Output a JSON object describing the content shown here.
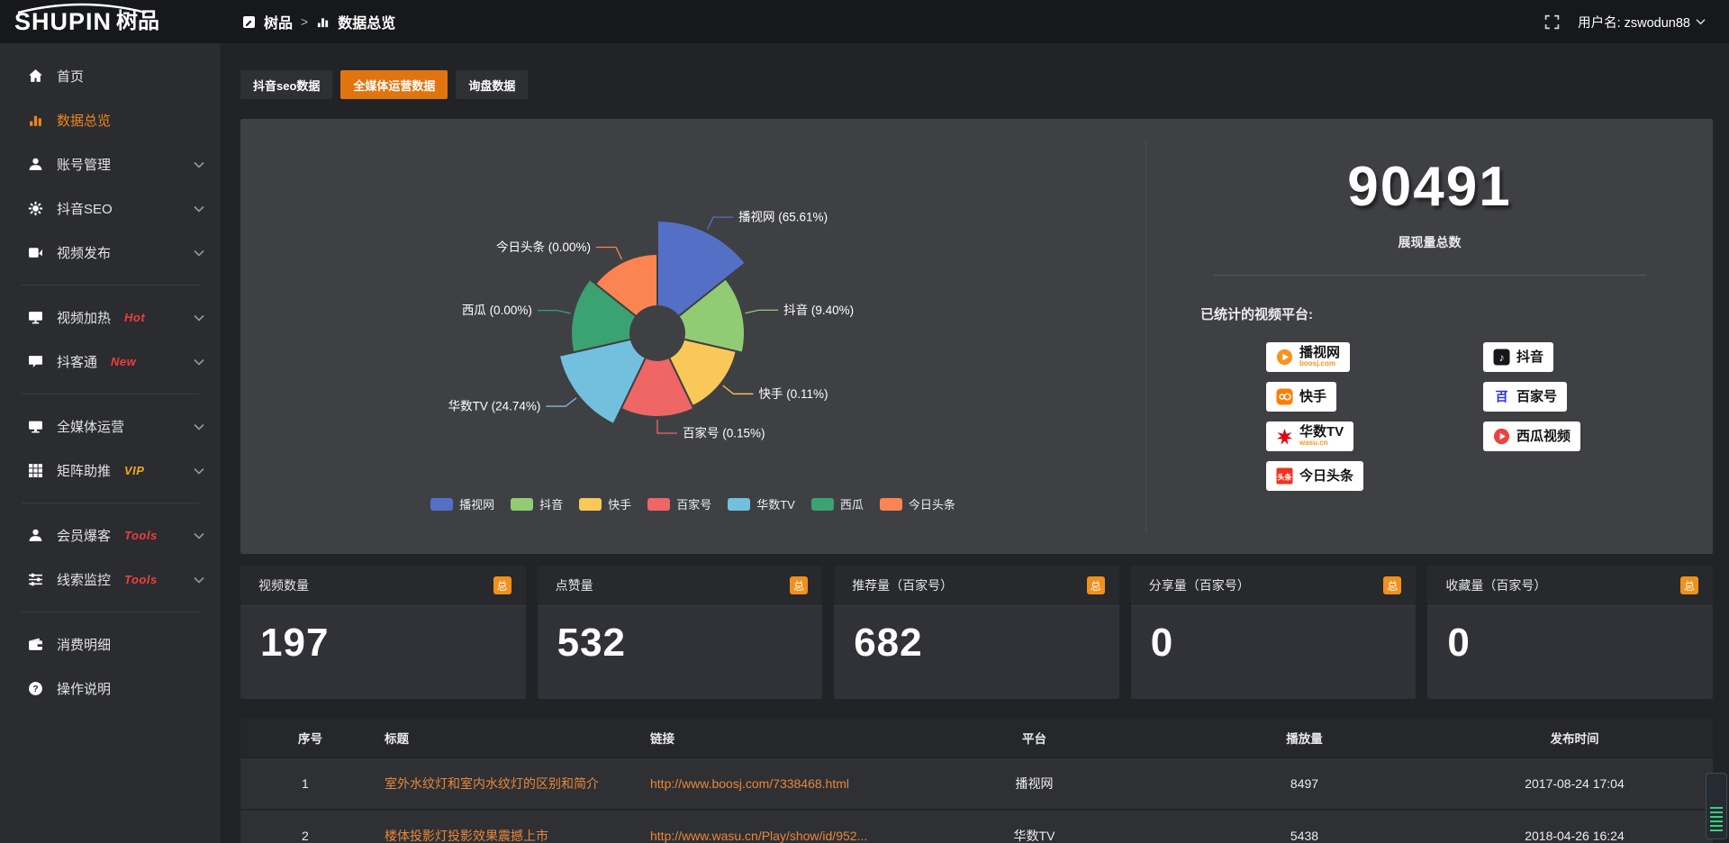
{
  "topbar": {
    "logo_text_en": "SHUPIN",
    "logo_text_cn": "树品",
    "breadcrumb_root": "树品",
    "breadcrumb_sep": ">",
    "breadcrumb_current": "数据总览",
    "username": "用户名: zswodun88"
  },
  "sidebar": {
    "items": [
      {
        "key": "home",
        "label": "首页",
        "icon": "home",
        "active": false
      },
      {
        "key": "data-overview",
        "label": "数据总览",
        "icon": "chart",
        "active": true
      },
      {
        "key": "account-manage",
        "label": "账号管理",
        "icon": "user",
        "chevron": true
      },
      {
        "key": "douyin-seo",
        "label": "抖音SEO",
        "icon": "gear",
        "chevron": true
      },
      {
        "key": "video-publish",
        "label": "视频发布",
        "icon": "publish",
        "chevron": true,
        "divider_after": true
      },
      {
        "key": "video-heat",
        "label": "视频加热",
        "icon": "heat",
        "badge": "Hot",
        "badge_color": "#f03e3e",
        "chevron": true
      },
      {
        "key": "douketong",
        "label": "抖客通",
        "icon": "chat",
        "badge": "New",
        "badge_color": "#f03e3e",
        "chevron": true,
        "divider_after": true
      },
      {
        "key": "media-operation",
        "label": "全媒体运营",
        "icon": "media",
        "chevron": true
      },
      {
        "key": "matrix-boost",
        "label": "矩阵助推",
        "icon": "matrix",
        "badge": "VIP",
        "badge_color": "#f0a818",
        "chevron": true,
        "divider_after": true
      },
      {
        "key": "member-baoke",
        "label": "会员爆客",
        "icon": "member",
        "badge": "Tools",
        "badge_color": "#f03e3e",
        "chevron": true
      },
      {
        "key": "clue-monitor",
        "label": "线索监控",
        "icon": "sliders",
        "badge": "Tools",
        "badge_color": "#f03e3e",
        "chevron": true,
        "divider_after": true
      },
      {
        "key": "expense-detail",
        "label": "消费明细",
        "icon": "wallet"
      },
      {
        "key": "help-guide",
        "label": "操作说明",
        "icon": "help"
      }
    ]
  },
  "tabs": [
    {
      "key": "douyin-seo-data",
      "label": "抖音seo数据",
      "active": false
    },
    {
      "key": "media-operation-data",
      "label": "全媒体运营数据",
      "active": true
    },
    {
      "key": "inquiry-data",
      "label": "询盘数据",
      "active": false
    }
  ],
  "chart_data": {
    "type": "pie",
    "variant": "nightingale-rose",
    "unit": "percent of total impressions",
    "inner_radius": 30,
    "legend_position": "bottom",
    "legend": [
      "播视网",
      "抖音",
      "快手",
      "百家号",
      "华数TV",
      "西瓜",
      "今日头条"
    ],
    "series": [
      {
        "key": "boosj",
        "name": "播视网",
        "value": 65.61,
        "label": "播视网 (65.61%)",
        "color": "#5470c6",
        "radius": 125
      },
      {
        "key": "douyin",
        "name": "抖音",
        "value": 9.4,
        "label": "抖音 (9.40%)",
        "color": "#91cc75",
        "radius": 97
      },
      {
        "key": "kuaishou",
        "name": "快手",
        "value": 0.11,
        "label": "快手 (0.11%)",
        "color": "#fac858",
        "radius": 90
      },
      {
        "key": "baijiahao",
        "name": "百家号",
        "value": 0.15,
        "label": "百家号 (0.15%)",
        "color": "#ee6666",
        "radius": 93
      },
      {
        "key": "wasu",
        "name": "华数TV",
        "value": 24.74,
        "label": "华数TV (24.74%)",
        "color": "#73c0de",
        "radius": 112
      },
      {
        "key": "xigua",
        "name": "西瓜",
        "value": 0.0,
        "label": "西瓜 (0.00%)",
        "color": "#3ba272",
        "radius": 96
      },
      {
        "key": "toutiao",
        "name": "今日头条",
        "value": 0.0,
        "label": "今日头条 (0.00%)",
        "color": "#fc8452",
        "radius": 88
      }
    ]
  },
  "summary": {
    "total_value": "90491",
    "total_label": "展现量总数",
    "platforms_title": "已统计的视频平台:",
    "platforms": [
      {
        "key": "boosj",
        "name": "播视网",
        "sub": "boosj.com",
        "col": 1,
        "row": 0
      },
      {
        "key": "douyin",
        "name": "抖音",
        "col": 2,
        "row": 0
      },
      {
        "key": "kuaishou",
        "name": "快手",
        "col": 1,
        "row": 1
      },
      {
        "key": "baijiahao",
        "name": "百家号",
        "col": 2,
        "row": 1
      },
      {
        "key": "wasu",
        "name": "华数TV",
        "sub": "wasu.cn",
        "col": 1,
        "row": 2
      },
      {
        "key": "xigua",
        "name": "西瓜视频",
        "col": 2,
        "row": 2
      },
      {
        "key": "toutiao",
        "name": "今日头条",
        "col": 1,
        "row": 3
      }
    ]
  },
  "stat_cards": [
    {
      "label": "视频数量",
      "badge": "总",
      "value": "197"
    },
    {
      "label": "点赞量",
      "badge": "总",
      "value": "532"
    },
    {
      "label": "推荐量（百家号）",
      "badge": "总",
      "value": "682"
    },
    {
      "label": "分享量（百家号）",
      "badge": "总",
      "value": "0"
    },
    {
      "label": "收藏量（百家号）",
      "badge": "总",
      "value": "0"
    }
  ],
  "table": {
    "headers": [
      "序号",
      "标题",
      "链接",
      "平台",
      "播放量",
      "发布时间"
    ],
    "rows": [
      {
        "index": "1",
        "title": "室外水纹灯和室内水纹灯的区别和简介",
        "link": "http://www.boosj.com/7338468.html",
        "platform": "播视网",
        "plays": "8497",
        "time": "2017-08-24 17:04"
      },
      {
        "index": "2",
        "title": "楼体投影灯投影效果震撼上市",
        "link": "http://www.wasu.cn/Play/show/id/952...",
        "platform": "华数TV",
        "plays": "5438",
        "time": "2018-04-26 16:24"
      }
    ]
  },
  "colors": {
    "accent_orange": "#e1740e",
    "menu_active_orange": "#f08519",
    "link_orange": "#e8873a",
    "badge_orange": "#f0911c"
  }
}
